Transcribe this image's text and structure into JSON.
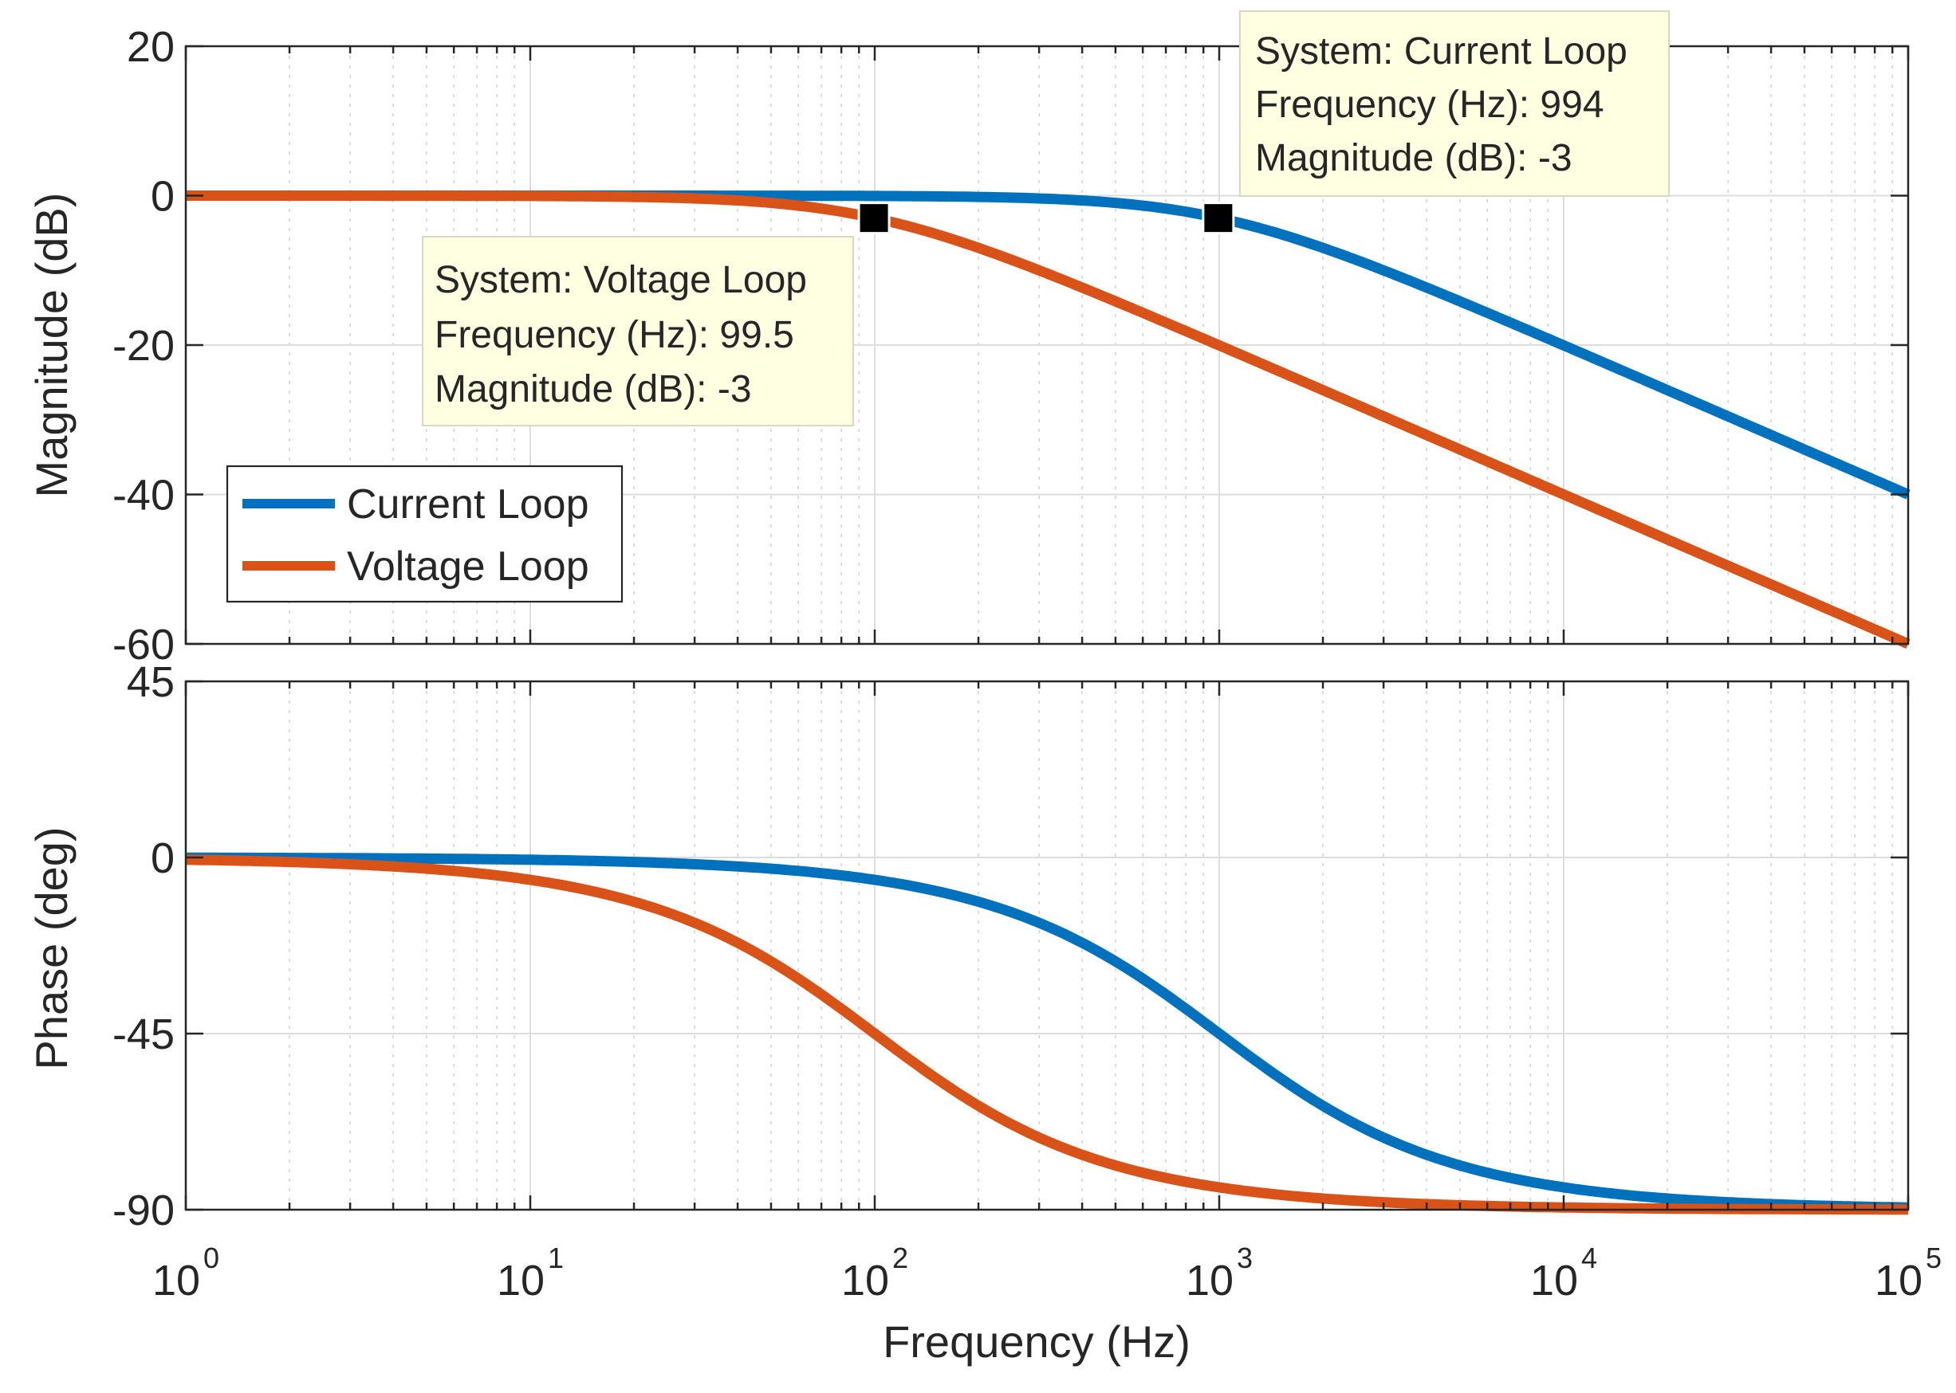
{
  "chart_data": {
    "type": "line",
    "title": "",
    "x_axis": {
      "label": "Frequency  (Hz)",
      "scale": "log",
      "range": [
        1,
        100000
      ],
      "ticks": [
        {
          "value": 1,
          "base": "10",
          "exp": "0"
        },
        {
          "value": 10,
          "base": "10",
          "exp": "1"
        },
        {
          "value": 100,
          "base": "10",
          "exp": "2"
        },
        {
          "value": 1000,
          "base": "10",
          "exp": "3"
        },
        {
          "value": 10000,
          "base": "10",
          "exp": "4"
        },
        {
          "value": 100000,
          "base": "10",
          "exp": "5"
        }
      ]
    },
    "magnitude_axis": {
      "label": "Magnitude (dB)",
      "range": [
        -60,
        20
      ],
      "ticks": [
        {
          "value": 20,
          "label": "20"
        },
        {
          "value": 0,
          "label": "0"
        },
        {
          "value": -20,
          "label": "-20"
        },
        {
          "value": -40,
          "label": "-40"
        },
        {
          "value": -60,
          "label": "-60"
        }
      ]
    },
    "phase_axis": {
      "label": "Phase (deg)",
      "range": [
        -90,
        45
      ],
      "ticks": [
        {
          "value": 45,
          "label": "45"
        },
        {
          "value": 0,
          "label": "0"
        },
        {
          "value": -45,
          "label": "-45"
        },
        {
          "value": -90,
          "label": "-90"
        }
      ]
    },
    "grid": true,
    "legend_position": "left-lower (magnitude panel)",
    "series": [
      {
        "name": "Current Loop",
        "color": "#0072BD",
        "corner_hz": 1000
      },
      {
        "name": "Voltage Loop",
        "color": "#D95319",
        "corner_hz": 100
      }
    ],
    "datatips": [
      {
        "system_line": "System: Current Loop",
        "frequency_line": "Frequency (Hz): 994",
        "magnitude_line": "Magnitude (dB): -3",
        "frequency": 994,
        "magnitude": -3
      },
      {
        "system_line": "System: Voltage Loop",
        "frequency_line": "Frequency (Hz): 99.5",
        "magnitude_line": "Magnitude (dB): -3",
        "frequency": 99.5,
        "magnitude": -3
      }
    ]
  }
}
